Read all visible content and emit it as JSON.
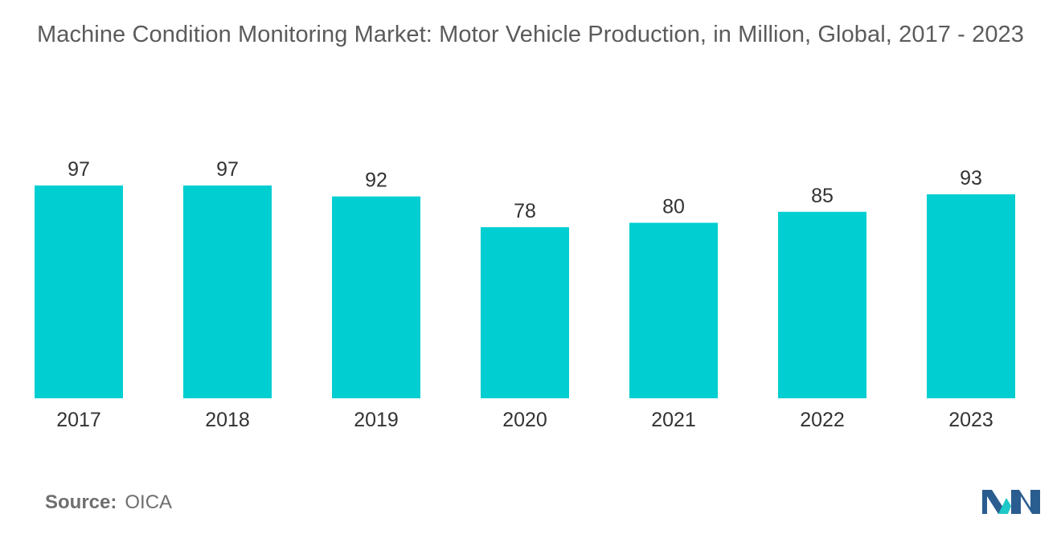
{
  "chart_data": {
    "type": "bar",
    "title": "Machine Condition Monitoring Market: Motor Vehicle Production, in Million, Global, 2017 - 2023",
    "categories": [
      "2017",
      "2018",
      "2019",
      "2020",
      "2021",
      "2022",
      "2023"
    ],
    "values": [
      97,
      97,
      92,
      78,
      80,
      85,
      93
    ],
    "xlabel": "",
    "ylabel": "",
    "ylim": [
      0,
      97
    ],
    "grid": false,
    "legend": "none",
    "bar_color": "#00ced1"
  },
  "source": {
    "label": "Source:",
    "value": "OICA"
  },
  "logo": {
    "icon": "mordor-intelligence-logo-icon",
    "colors": [
      "#2a5d8f",
      "#1ec8c8"
    ]
  }
}
